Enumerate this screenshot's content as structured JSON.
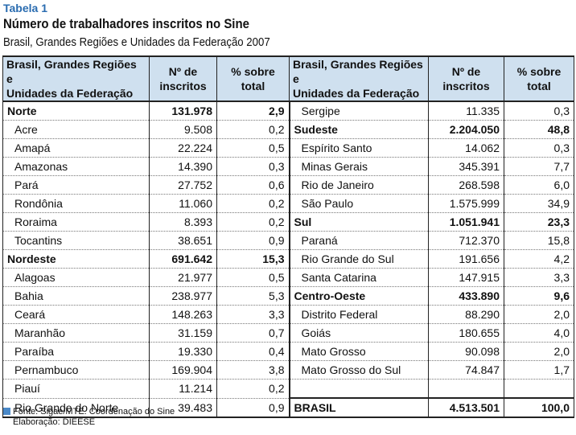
{
  "label": "Tabela 1",
  "title": "Número de trabalhadores inscritos no Sine",
  "subtitle": "Brasil, Grandes Regiões e Unidades da Federação 2007",
  "headers": {
    "region_line1": "Brasil, Grandes Regiões e",
    "region_line2": "Unidades da Federação",
    "count_line1": "Nº de",
    "count_line2": "inscritos",
    "pct_line1": "% sobre",
    "pct_line2": "total"
  },
  "left": [
    {
      "name": "Norte",
      "count": "131.978",
      "pct": "2,9",
      "bold": true
    },
    {
      "name": "Acre",
      "count": "9.508",
      "pct": "0,2"
    },
    {
      "name": "Amapá",
      "count": "22.224",
      "pct": "0,5"
    },
    {
      "name": "Amazonas",
      "count": "14.390",
      "pct": "0,3"
    },
    {
      "name": "Pará",
      "count": "27.752",
      "pct": "0,6"
    },
    {
      "name": "Rondônia",
      "count": "11.060",
      "pct": "0,2"
    },
    {
      "name": "Roraima",
      "count": "8.393",
      "pct": "0,2"
    },
    {
      "name": "Tocantins",
      "count": "38.651",
      "pct": "0,9"
    },
    {
      "name": "Nordeste",
      "count": "691.642",
      "pct": "15,3",
      "bold": true
    },
    {
      "name": "Alagoas",
      "count": "21.977",
      "pct": "0,5"
    },
    {
      "name": "Bahia",
      "count": "238.977",
      "pct": "5,3"
    },
    {
      "name": "Ceará",
      "count": "148.263",
      "pct": "3,3"
    },
    {
      "name": "Maranhão",
      "count": "31.159",
      "pct": "0,7"
    },
    {
      "name": "Paraíba",
      "count": "19.330",
      "pct": "0,4"
    },
    {
      "name": "Pernambuco",
      "count": "169.904",
      "pct": "3,8"
    },
    {
      "name": "Piauí",
      "count": "11.214",
      "pct": "0,2"
    },
    {
      "name": "Rio Grande do Norte",
      "count": "39.483",
      "pct": "0,9"
    }
  ],
  "right": [
    {
      "name": "Sergipe",
      "count": "11.335",
      "pct": "0,3"
    },
    {
      "name": "Sudeste",
      "count": "2.204.050",
      "pct": "48,8",
      "bold": true
    },
    {
      "name": "Espírito Santo",
      "count": "14.062",
      "pct": "0,3"
    },
    {
      "name": "Minas Gerais",
      "count": "345.391",
      "pct": "7,7"
    },
    {
      "name": "Rio de Janeiro",
      "count": "268.598",
      "pct": "6,0"
    },
    {
      "name": "São Paulo",
      "count": "1.575.999",
      "pct": "34,9"
    },
    {
      "name": "Sul",
      "count": "1.051.941",
      "pct": "23,3",
      "bold": true
    },
    {
      "name": "Paraná",
      "count": "712.370",
      "pct": "15,8"
    },
    {
      "name": "Rio Grande do Sul",
      "count": "191.656",
      "pct": "4,2"
    },
    {
      "name": "Santa Catarina",
      "count": "147.915",
      "pct": "3,3"
    },
    {
      "name": "Centro-Oeste",
      "count": "433.890",
      "pct": "9,6",
      "bold": true
    },
    {
      "name": "Distrito Federal",
      "count": "88.290",
      "pct": "2,0"
    },
    {
      "name": "Goiás",
      "count": "180.655",
      "pct": "4,0"
    },
    {
      "name": "Mato Grosso",
      "count": "90.098",
      "pct": "2,0"
    },
    {
      "name": "Mato Grosso do Sul",
      "count": "74.847",
      "pct": "1,7"
    },
    {
      "name": "",
      "count": "",
      "pct": ""
    },
    {
      "name": "BRASIL",
      "count": "4.513.501",
      "pct": "100,0",
      "bold": true,
      "total": true
    }
  ],
  "footer": {
    "source": "Fonte: Sigae/MTE. Coordenação do Sine",
    "elaboration": "Elaboração: DIEESE"
  },
  "colors": {
    "header_bg": "#cfe0ef",
    "label": "#2a6cb0",
    "footer_square": "#4a89c8"
  }
}
